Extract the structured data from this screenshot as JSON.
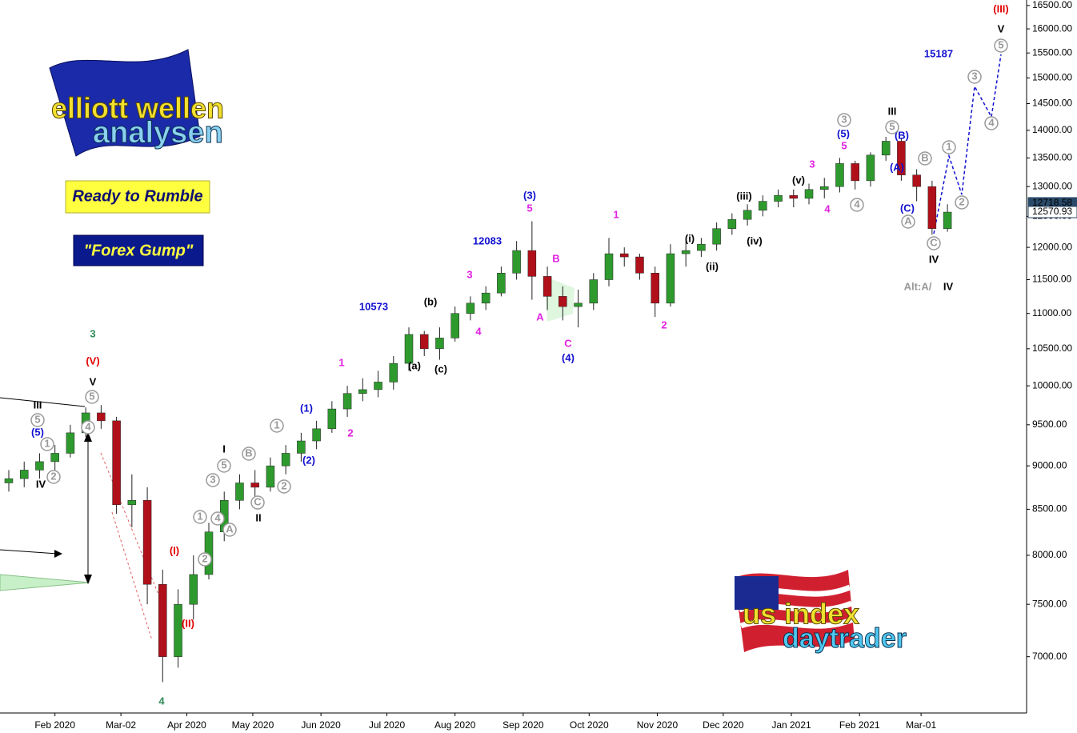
{
  "chart_data": {
    "type": "candlestick",
    "log_scale": true,
    "up_color": "#2e9a2e",
    "down_color": "#b0101a",
    "wick_color": "#222222",
    "xlim": [
      -25,
      442
    ],
    "ylim": [
      6500,
      16620
    ],
    "xticks": [
      {
        "value": 0,
        "label": "Feb 2020"
      },
      {
        "value": 30,
        "label": "Mar-02"
      },
      {
        "value": 60,
        "label": "Apr 2020"
      },
      {
        "value": 90,
        "label": "May 2020"
      },
      {
        "value": 121,
        "label": "Jun 2020"
      },
      {
        "value": 151,
        "label": "Jul 2020"
      },
      {
        "value": 182,
        "label": "Aug 2020"
      },
      {
        "value": 213,
        "label": "Sep 2020"
      },
      {
        "value": 243,
        "label": "Oct 2020"
      },
      {
        "value": 274,
        "label": "Nov 2020"
      },
      {
        "value": 304,
        "label": "Dec 2020"
      },
      {
        "value": 335,
        "label": "Jan 2021"
      },
      {
        "value": 366,
        "label": "Feb 2021"
      },
      {
        "value": 394,
        "label": "Mar-01"
      }
    ],
    "yticks": [
      {
        "value": 7000,
        "label": "7000.00"
      },
      {
        "value": 7500,
        "label": "7500.00"
      },
      {
        "value": 8000,
        "label": "8000.00"
      },
      {
        "value": 8500,
        "label": "8500.00"
      },
      {
        "value": 9000,
        "label": "9000.00"
      },
      {
        "value": 9500,
        "label": "9500.00"
      },
      {
        "value": 10000,
        "label": "10000.00"
      },
      {
        "value": 10500,
        "label": "10500.00"
      },
      {
        "value": 11000,
        "label": "11000.00"
      },
      {
        "value": 11500,
        "label": "11500.00"
      },
      {
        "value": 12000,
        "label": "12000.00"
      },
      {
        "value": 12500,
        "label": "12500.00"
      },
      {
        "value": 13000,
        "label": "13000.00"
      },
      {
        "value": 13500,
        "label": "13500.00"
      },
      {
        "value": 14000,
        "label": "14000.00"
      },
      {
        "value": 14500,
        "label": "14500.00"
      },
      {
        "value": 15000,
        "label": "15000.00"
      },
      {
        "value": 15500,
        "label": "15500.00"
      },
      {
        "value": 16000,
        "label": "16000.00"
      },
      {
        "value": 16500,
        "label": "16500.00"
      }
    ],
    "x": [
      -21,
      -14,
      -7,
      0,
      7,
      14,
      21,
      28,
      35,
      42,
      49,
      56,
      63,
      70,
      77,
      84,
      91,
      98,
      105,
      112,
      119,
      126,
      133,
      140,
      147,
      154,
      161,
      168,
      175,
      182,
      189,
      196,
      203,
      210,
      217,
      224,
      231,
      238,
      245,
      252,
      259,
      266,
      273,
      280,
      287,
      294,
      301,
      308,
      315,
      322,
      329,
      336,
      343,
      350,
      357,
      364,
      371,
      378,
      385,
      392,
      399,
      406
    ],
    "open": [
      8800,
      8850,
      8950,
      9050,
      9150,
      9400,
      9650,
      9550,
      8550,
      8600,
      7700,
      7000,
      7500,
      7800,
      8250,
      8600,
      8800,
      8750,
      9000,
      9150,
      9300,
      9450,
      9700,
      9900,
      9950,
      10050,
      10300,
      10700,
      10500,
      10650,
      11000,
      11150,
      11300,
      11600,
      11950,
      11550,
      11250,
      11100,
      11150,
      11500,
      11900,
      11850,
      11600,
      11150,
      11900,
      11950,
      12050,
      12300,
      12450,
      12600,
      12750,
      12850,
      12800,
      12950,
      13000,
      13400,
      13100,
      13550,
      13800,
      13200,
      13000,
      12300
    ],
    "high": [
      8950,
      9050,
      9150,
      9250,
      9500,
      9720,
      9750,
      9600,
      8900,
      8750,
      7850,
      7650,
      8000,
      8350,
      8700,
      8900,
      8950,
      9100,
      9250,
      9400,
      9550,
      9800,
      10000,
      10100,
      10200,
      10400,
      10800,
      10750,
      10800,
      11100,
      11250,
      11400,
      11700,
      12100,
      12420,
      11700,
      11400,
      11350,
      11600,
      12150,
      12000,
      11900,
      11700,
      12050,
      12100,
      12150,
      12400,
      12550,
      12700,
      12850,
      12950,
      12950,
      13050,
      13150,
      13500,
      13450,
      13600,
      13880,
      13850,
      13300,
      13100,
      12700
    ],
    "low": [
      8700,
      8750,
      8850,
      8950,
      9100,
      9350,
      9450,
      8450,
      8300,
      7500,
      6770,
      6900,
      7350,
      7750,
      8150,
      8500,
      8600,
      8700,
      8900,
      9050,
      9200,
      9400,
      9600,
      9800,
      9850,
      9950,
      10200,
      10400,
      10350,
      10600,
      10900,
      11050,
      11250,
      11500,
      11200,
      11050,
      10900,
      10800,
      11050,
      11400,
      11700,
      11500,
      10950,
      11100,
      11700,
      11850,
      11950,
      12200,
      12350,
      12500,
      12650,
      12650,
      12700,
      12800,
      12900,
      12950,
      13000,
      13450,
      13100,
      12750,
      12200,
      12250
    ],
    "close": [
      8850,
      8950,
      9050,
      9150,
      9400,
      9650,
      9550,
      8550,
      8600,
      7700,
      7000,
      7500,
      7800,
      8250,
      8600,
      8800,
      8750,
      9000,
      9150,
      9300,
      9450,
      9700,
      9900,
      9950,
      10050,
      10300,
      10700,
      10500,
      10650,
      11000,
      11150,
      11300,
      11600,
      11950,
      11550,
      11250,
      11100,
      11150,
      11500,
      11900,
      11850,
      11600,
      11150,
      11900,
      11950,
      12050,
      12300,
      12450,
      12600,
      12750,
      12850,
      12800,
      12950,
      13000,
      13400,
      13100,
      13550,
      13800,
      13200,
      13000,
      12300,
      12570
    ],
    "price_tags": [
      12718.58,
      12570.93
    ],
    "annotations": [
      {
        "text": "3",
        "color": "#2e8b57",
        "style": "big"
      },
      {
        "text": "(V)",
        "color": "#e00000",
        "style": "large"
      },
      {
        "text": "V",
        "color": "#000000",
        "style": "large"
      },
      {
        "text": "III",
        "color": "#000000",
        "style": "large"
      },
      {
        "text": "(5)",
        "color": "#1010d0",
        "style": "plain"
      },
      {
        "text": "IV",
        "color": "#000000",
        "style": "large"
      },
      {
        "text": "4",
        "color": "#2e8b57",
        "style": "big"
      },
      {
        "text": "(I)",
        "color": "#e00000",
        "style": "large"
      },
      {
        "text": "(II)",
        "color": "#e00000",
        "style": "large"
      },
      {
        "text": "I",
        "color": "#000000",
        "style": "large"
      },
      {
        "text": "II",
        "color": "#000000",
        "style": "large"
      },
      {
        "text": "(1)",
        "color": "#1010d0",
        "style": "plain"
      },
      {
        "text": "(2)",
        "color": "#1010d0",
        "style": "plain"
      },
      {
        "text": "1",
        "color": "#e020e0",
        "style": "plain"
      },
      {
        "text": "2",
        "color": "#e020e0",
        "style": "plain"
      },
      {
        "text": "10573",
        "color": "#1010d0",
        "style": "plain"
      },
      {
        "text": "(a)",
        "color": "#000000",
        "style": "small"
      },
      {
        "text": "(b)",
        "color": "#000000",
        "style": "small"
      },
      {
        "text": "(c)",
        "color": "#000000",
        "style": "small"
      },
      {
        "text": "3",
        "color": "#e020e0",
        "style": "plain"
      },
      {
        "text": "4",
        "color": "#e020e0",
        "style": "plain"
      },
      {
        "text": "12083",
        "color": "#1010d0",
        "style": "plain"
      },
      {
        "text": "(3)",
        "color": "#1010d0",
        "style": "plain"
      },
      {
        "text": "5",
        "color": "#e020e0",
        "style": "plain"
      },
      {
        "text": "A",
        "color": "#e020e0",
        "style": "plain"
      },
      {
        "text": "B",
        "color": "#e020e0",
        "style": "plain"
      },
      {
        "text": "C",
        "color": "#e020e0",
        "style": "plain"
      },
      {
        "text": "(4)",
        "color": "#1010d0",
        "style": "plain"
      },
      {
        "text": "1",
        "color": "#e020e0",
        "style": "plain"
      },
      {
        "text": "2",
        "color": "#e020e0",
        "style": "plain"
      },
      {
        "text": "(i)",
        "color": "#000000",
        "style": "small"
      },
      {
        "text": "(ii)",
        "color": "#000000",
        "style": "small"
      },
      {
        "text": "(iii)",
        "color": "#000000",
        "style": "small"
      },
      {
        "text": "(iv)",
        "color": "#000000",
        "style": "small"
      },
      {
        "text": "(v)",
        "color": "#000000",
        "style": "small"
      },
      {
        "text": "3",
        "color": "#e020e0",
        "style": "plain"
      },
      {
        "text": "4",
        "color": "#e020e0",
        "style": "plain"
      },
      {
        "text": "(5)",
        "color": "#1010d0",
        "style": "plain"
      },
      {
        "text": "5",
        "color": "#e020e0",
        "style": "plain"
      },
      {
        "text": "III",
        "color": "#000000",
        "style": "large"
      },
      {
        "text": "(A)",
        "color": "#1010d0",
        "style": "plain"
      },
      {
        "text": "(B)",
        "color": "#1010d0",
        "style": "plain"
      },
      {
        "text": "(C)",
        "color": "#1010d0",
        "style": "plain"
      },
      {
        "text": "IV",
        "color": "#000000",
        "style": "large"
      },
      {
        "text": "Alt:A/",
        "color": "#999999",
        "style": "plain"
      },
      {
        "text": "IV",
        "color": "#000000",
        "style": "plain"
      },
      {
        "text": "15187",
        "color": "#1010d0",
        "style": "plain"
      },
      {
        "text": "(III)",
        "color": "#e00000",
        "style": "large"
      },
      {
        "text": "V",
        "color": "#000000",
        "style": "large"
      },
      {
        "text": "5",
        "color": "#999999",
        "style": "circle"
      },
      {
        "text": "1",
        "color": "#999999",
        "style": "circle"
      },
      {
        "text": "2",
        "color": "#999999",
        "style": "circle"
      },
      {
        "text": "5",
        "color": "#999999",
        "style": "circle"
      },
      {
        "text": "4",
        "color": "#999999",
        "style": "circle"
      },
      {
        "text": "1",
        "color": "#999999",
        "style": "circle"
      },
      {
        "text": "2",
        "color": "#999999",
        "style": "circle"
      },
      {
        "text": "3",
        "color": "#999999",
        "style": "circle"
      },
      {
        "text": "4",
        "color": "#999999",
        "style": "circle"
      },
      {
        "text": "5",
        "color": "#999999",
        "style": "circle"
      },
      {
        "text": "A",
        "color": "#999999",
        "style": "circle"
      },
      {
        "text": "B",
        "color": "#999999",
        "style": "circle"
      },
      {
        "text": "C",
        "color": "#999999",
        "style": "circle"
      },
      {
        "text": "1",
        "color": "#999999",
        "style": "circle"
      },
      {
        "text": "2",
        "color": "#999999",
        "style": "circle"
      },
      {
        "text": "3",
        "color": "#999999",
        "style": "circle"
      },
      {
        "text": "5",
        "color": "#999999",
        "style": "circle"
      },
      {
        "text": "4",
        "color": "#999999",
        "style": "circle"
      },
      {
        "text": "A",
        "color": "#999999",
        "style": "circle"
      },
      {
        "text": "B",
        "color": "#999999",
        "style": "circle"
      },
      {
        "text": "C",
        "color": "#999999",
        "style": "circle"
      },
      {
        "text": "1",
        "color": "#999999",
        "style": "circle"
      },
      {
        "text": "2",
        "color": "#999999",
        "style": "circle"
      },
      {
        "text": "3",
        "color": "#999999",
        "style": "circle"
      },
      {
        "text": "4",
        "color": "#999999",
        "style": "circle"
      },
      {
        "text": "5",
        "color": "#999999",
        "style": "circle"
      }
    ]
  },
  "logos": {
    "brand_top": "elliott wellen",
    "brand_bottom": "analysen",
    "tag1": "Ready to Rumble",
    "tag2": "\"Forex Gump\"",
    "us_top": "us index",
    "us_bottom": "daytrader"
  }
}
